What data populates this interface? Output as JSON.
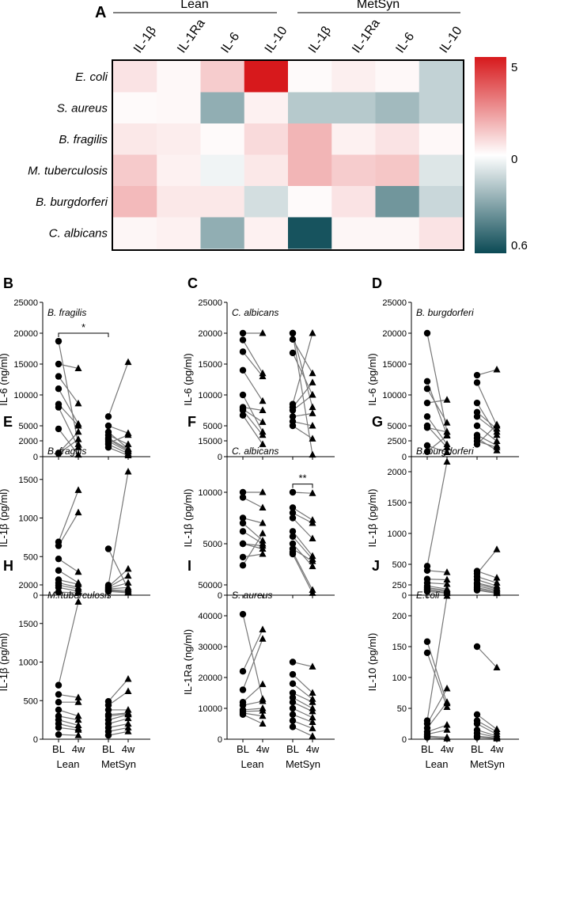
{
  "heatmap": {
    "panel": "A",
    "groups": [
      "Lean",
      "MetSyn"
    ],
    "columns": [
      "IL-1β",
      "IL-1Ra",
      "IL-6",
      "IL-10",
      "IL-1β",
      "IL-1Ra",
      "IL-6",
      "IL-10"
    ],
    "rows": [
      "E. coli",
      "S. aureus",
      "B. fragilis",
      "M. tuberculosis",
      "B. burgdorferi",
      "C. albicans"
    ],
    "colorbar": {
      "top": "5",
      "mid": "0",
      "bottom": "0.6",
      "high_color": "#d7191c",
      "mid_color": "#ffffff",
      "low_color": "#0b4a55"
    },
    "values": [
      [
        0.12,
        0.03,
        0.22,
        1.0,
        0.02,
        0.07,
        0.03,
        -0.25
      ],
      [
        0.02,
        0.03,
        -0.45,
        0.06,
        -0.3,
        -0.3,
        -0.38,
        -0.25
      ],
      [
        0.1,
        0.08,
        0.02,
        0.16,
        0.32,
        0.06,
        0.12,
        0.03
      ],
      [
        0.23,
        0.06,
        -0.06,
        0.1,
        0.32,
        0.22,
        0.25,
        -0.14
      ],
      [
        0.3,
        0.1,
        0.1,
        -0.18,
        0.02,
        0.12,
        -0.58,
        -0.22
      ],
      [
        0.04,
        0.06,
        -0.45,
        0.06,
        -0.95,
        0.04,
        0.04,
        0.12
      ]
    ]
  },
  "panels_common": {
    "x_ticks": [
      "BL",
      "4w",
      "BL",
      "4w"
    ],
    "group_labels": [
      "Lean",
      "MetSyn"
    ]
  },
  "chart_data": [
    {
      "panel": "B",
      "type": "scatter",
      "organism": "B. fragilis",
      "ylabel": "IL-6 (ng/ml)",
      "ylim": [
        0,
        25000
      ],
      "yticks": [
        0,
        5000,
        10000,
        15000,
        20000,
        25000
      ],
      "sig": {
        "label": "*",
        "from": 0,
        "to": 2,
        "at": 20000
      },
      "pairs": [
        [
          [
            18700,
            2000
          ],
          [
            15000,
            14300
          ],
          [
            13000,
            8600
          ],
          [
            11000,
            5300
          ],
          [
            8500,
            5000
          ],
          [
            8000,
            1500
          ],
          [
            4500,
            300
          ],
          [
            600,
            4000
          ],
          [
            500,
            2800
          ]
        ],
        [
          [
            6500,
            15300
          ],
          [
            5000,
            3800
          ],
          [
            3500,
            2000
          ],
          [
            3000,
            1200
          ],
          [
            2500,
            800
          ],
          [
            2200,
            3500
          ],
          [
            2000,
            500
          ],
          [
            1500,
            200
          ],
          [
            2800,
            1000
          ],
          [
            4000,
            1300
          ]
        ]
      ]
    },
    {
      "panel": "C",
      "type": "scatter",
      "organism": "C. albicans",
      "ylabel": "IL-6 (pg/ml)",
      "ylim": [
        0,
        25000
      ],
      "yticks": [
        0,
        5000,
        10000,
        15000,
        20000,
        25000
      ],
      "sig": null,
      "pairs": [
        [
          [
            20000,
            20000
          ],
          [
            18900,
            13500
          ],
          [
            17000,
            13000
          ],
          [
            14000,
            9000
          ],
          [
            10000,
            4000
          ],
          [
            8000,
            7500
          ],
          [
            7700,
            5600
          ],
          [
            7500,
            3500
          ],
          [
            6700,
            2000
          ]
        ],
        [
          [
            20000,
            8000
          ],
          [
            19000,
            13500
          ],
          [
            16800,
            10000
          ],
          [
            8500,
            20000
          ],
          [
            8000,
            12000
          ],
          [
            7500,
            10000
          ],
          [
            6500,
            7000
          ],
          [
            5700,
            5000
          ],
          [
            5000,
            2900
          ],
          [
            20000,
            300
          ]
        ]
      ]
    },
    {
      "panel": "D",
      "type": "scatter",
      "organism": "B. burgdorferi",
      "ylabel": "IL-6 (pg/ml)",
      "ylim": [
        0,
        25000
      ],
      "yticks": [
        0,
        5000,
        10000,
        15000,
        20000,
        25000
      ],
      "sig": null,
      "pairs": [
        [
          [
            20000,
            4000
          ],
          [
            12200,
            3500
          ],
          [
            11000,
            5500
          ],
          [
            8700,
            9200
          ],
          [
            6500,
            2000
          ],
          [
            5000,
            1500
          ],
          [
            4700,
            4000
          ],
          [
            1800,
            700
          ],
          [
            800,
            3400
          ]
        ],
        [
          [
            13200,
            14100
          ],
          [
            12000,
            5000
          ],
          [
            8700,
            3500
          ],
          [
            7200,
            4500
          ],
          [
            6500,
            4000
          ],
          [
            5000,
            2500
          ],
          [
            3500,
            1800
          ],
          [
            3000,
            1000
          ],
          [
            2500,
            1500
          ],
          [
            2000,
            5200
          ]
        ]
      ]
    },
    {
      "panel": "E",
      "type": "scatter",
      "organism": "B. fragilis",
      "ylabel": "IL-1β (pg/ml)",
      "ylim": [
        0,
        2000
      ],
      "yticks": [
        0,
        500,
        1000,
        1500,
        2000
      ],
      "sig": null,
      "pairs": [
        [
          [
            690,
            1360
          ],
          [
            640,
            1070
          ],
          [
            470,
            300
          ],
          [
            320,
            160
          ],
          [
            200,
            140
          ],
          [
            160,
            100
          ],
          [
            130,
            80
          ],
          [
            100,
            50
          ],
          [
            40,
            30
          ]
        ],
        [
          [
            600,
            80
          ],
          [
            130,
            1600
          ],
          [
            110,
            340
          ],
          [
            100,
            250
          ],
          [
            90,
            160
          ],
          [
            80,
            100
          ],
          [
            70,
            60
          ],
          [
            60,
            40
          ],
          [
            50,
            30
          ]
        ]
      ]
    },
    {
      "panel": "F",
      "type": "scatter",
      "organism": "C. albicans",
      "ylabel": "IL-1β (pg/ml)",
      "ylim": [
        0,
        15000
      ],
      "yticks": [
        0,
        5000,
        10000,
        15000
      ],
      "sig": {
        "label": "**",
        "from": 2,
        "to": 3,
        "at": 10800
      },
      "pairs": [
        [
          [
            10000,
            10000
          ],
          [
            9500,
            8500
          ],
          [
            7500,
            7000
          ],
          [
            7000,
            5300
          ],
          [
            6200,
            5000
          ],
          [
            5000,
            4800
          ],
          [
            5000,
            4500
          ],
          [
            3700,
            4000
          ],
          [
            2900,
            6000
          ]
        ],
        [
          [
            10000,
            9900
          ],
          [
            8500,
            7300
          ],
          [
            8000,
            7000
          ],
          [
            7500,
            5500
          ],
          [
            6200,
            3800
          ],
          [
            5700,
            3500
          ],
          [
            5000,
            2800
          ],
          [
            4500,
            3300
          ],
          [
            4200,
            500
          ],
          [
            4000,
            200
          ]
        ]
      ]
    },
    {
      "panel": "G",
      "type": "scatter",
      "organism": "B. burgdorferi",
      "ylabel": "IL-1β (pg/ml)",
      "ylim": [
        0,
        2500
      ],
      "yticks": [
        0,
        500,
        1000,
        1500,
        2000,
        2500
      ],
      "sig": null,
      "pairs": [
        [
          [
            470,
            2160
          ],
          [
            400,
            370
          ],
          [
            260,
            250
          ],
          [
            200,
            180
          ],
          [
            150,
            100
          ],
          [
            120,
            80
          ],
          [
            100,
            60
          ],
          [
            80,
            40
          ],
          [
            60,
            30
          ]
        ],
        [
          [
            390,
            280
          ],
          [
            350,
            740
          ],
          [
            300,
            200
          ],
          [
            250,
            150
          ],
          [
            200,
            120
          ],
          [
            180,
            100
          ],
          [
            150,
            80
          ],
          [
            120,
            60
          ],
          [
            100,
            40
          ],
          [
            80,
            30
          ]
        ]
      ]
    },
    {
      "panel": "H",
      "type": "scatter",
      "organism": "M. tuberculosis",
      "ylabel": "IL-1β (pg/ml)",
      "ylim": [
        0,
        2000
      ],
      "yticks": [
        0,
        500,
        1000,
        1500,
        2000
      ],
      "sig": null,
      "pairs": [
        [
          [
            700,
            1780
          ],
          [
            580,
            540
          ],
          [
            480,
            480
          ],
          [
            380,
            300
          ],
          [
            300,
            250
          ],
          [
            250,
            180
          ],
          [
            200,
            140
          ],
          [
            150,
            120
          ],
          [
            60,
            50
          ]
        ],
        [
          [
            490,
            780
          ],
          [
            440,
            620
          ],
          [
            380,
            380
          ],
          [
            320,
            340
          ],
          [
            300,
            330
          ],
          [
            250,
            320
          ],
          [
            200,
            270
          ],
          [
            150,
            200
          ],
          [
            100,
            150
          ],
          [
            50,
            100
          ]
        ]
      ]
    },
    {
      "panel": "I",
      "type": "scatter",
      "organism": "S. aureus",
      "ylabel": "IL-1Ra (ng/ml)",
      "ylim": [
        0,
        50000
      ],
      "yticks": [
        0,
        10000,
        20000,
        30000,
        40000,
        50000
      ],
      "sig": null,
      "pairs": [
        [
          [
            40500,
            13000
          ],
          [
            22000,
            35500
          ],
          [
            16000,
            32500
          ],
          [
            12000,
            17800
          ],
          [
            11000,
            12300
          ],
          [
            9500,
            10000
          ],
          [
            9000,
            9200
          ],
          [
            8500,
            7500
          ],
          [
            8000,
            5000
          ]
        ],
        [
          [
            25000,
            23500
          ],
          [
            21000,
            15000
          ],
          [
            18000,
            13000
          ],
          [
            15000,
            12000
          ],
          [
            13500,
            10000
          ],
          [
            12000,
            9000
          ],
          [
            10000,
            7000
          ],
          [
            8000,
            5500
          ],
          [
            6000,
            3500
          ],
          [
            4000,
            1000
          ]
        ]
      ]
    },
    {
      "panel": "J",
      "type": "scatter",
      "organism": "E.coli",
      "ylabel": "IL-10 (pg/ml)",
      "ylim": [
        0,
        250
      ],
      "yticks": [
        0,
        50,
        100,
        150,
        200,
        250
      ],
      "sig": null,
      "pairs": [
        [
          [
            158,
            58
          ],
          [
            140,
            52
          ],
          [
            30,
            232
          ],
          [
            25,
            82
          ],
          [
            18,
            60
          ],
          [
            12,
            23
          ],
          [
            8,
            15
          ],
          [
            5,
            3
          ],
          [
            3,
            1
          ]
        ],
        [
          [
            150,
            116
          ],
          [
            40,
            16
          ],
          [
            30,
            12
          ],
          [
            25,
            8
          ],
          [
            15,
            5
          ],
          [
            10,
            3
          ],
          [
            5,
            2
          ],
          [
            3,
            1
          ]
        ]
      ]
    }
  ]
}
